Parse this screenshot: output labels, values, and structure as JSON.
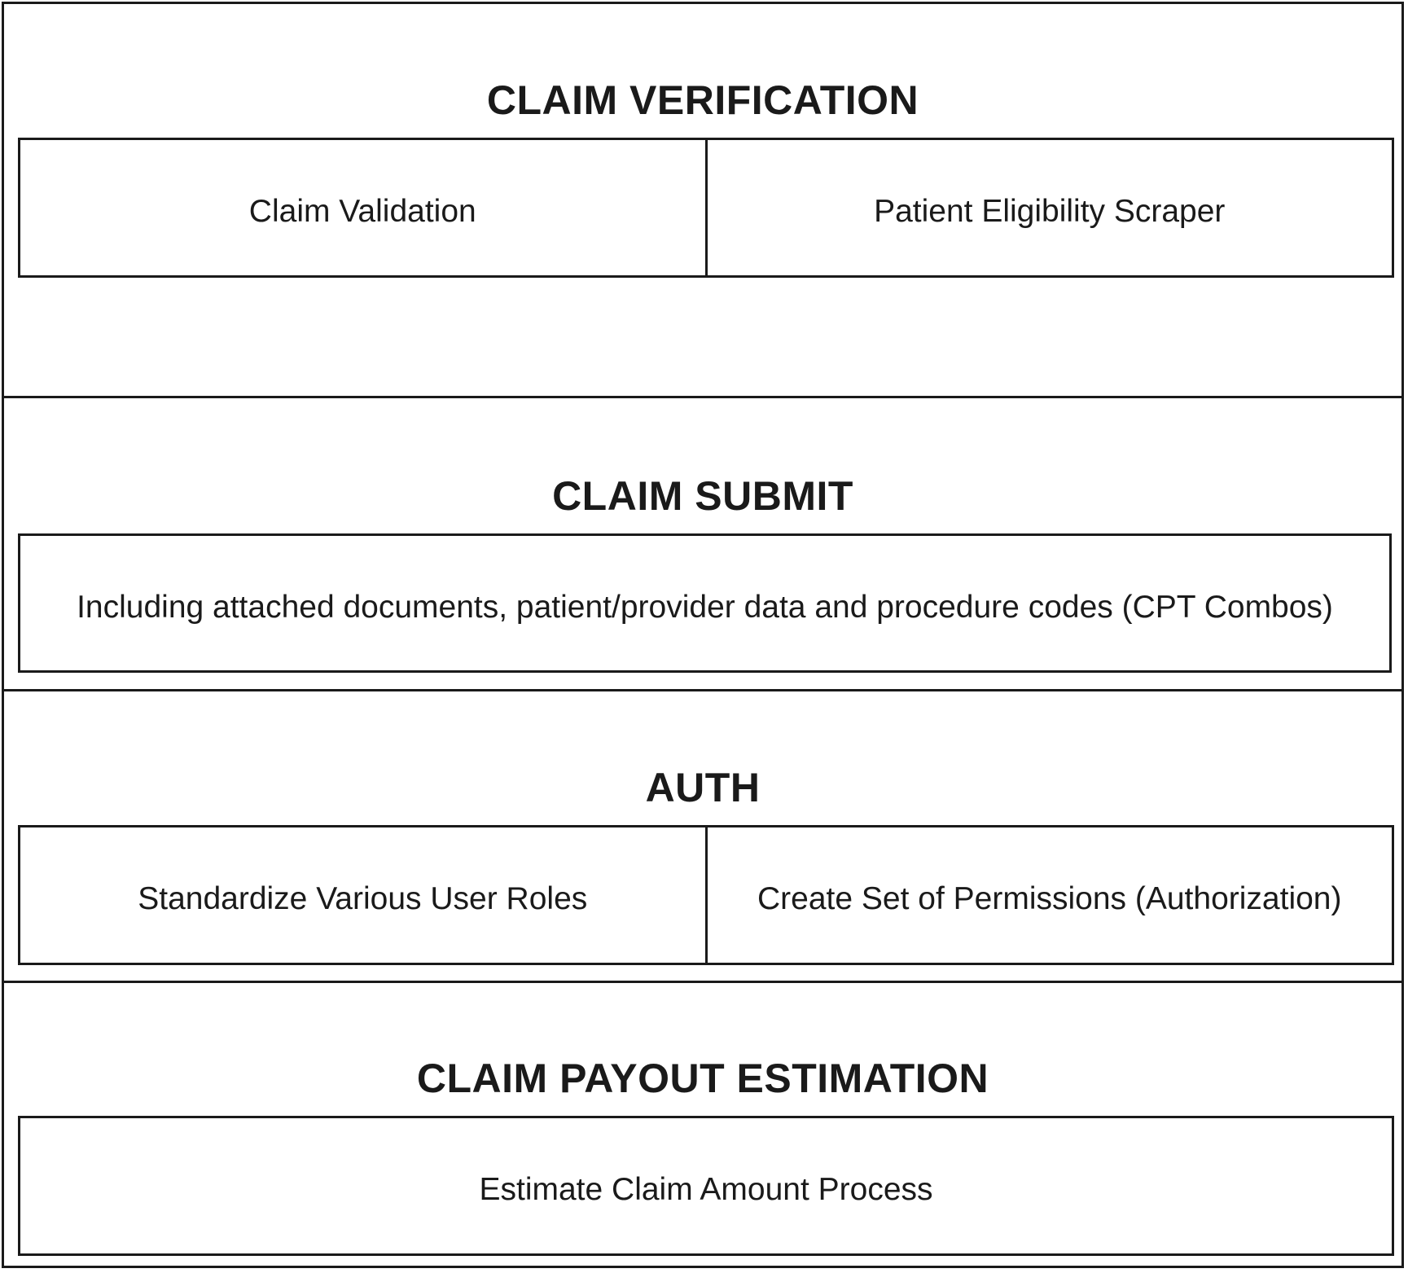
{
  "sections": [
    {
      "title": "CLAIM VERIFICATION",
      "items": [
        "Claim Validation",
        "Patient Eligibility Scraper"
      ]
    },
    {
      "title": "CLAIM SUBMIT",
      "items": [
        "Including attached documents, patient/provider data and procedure codes (CPT Combos)"
      ]
    },
    {
      "title": "AUTH",
      "items": [
        "Standardize Various User Roles",
        "Create Set of Permissions (Authorization)"
      ]
    },
    {
      "title": "CLAIM PAYOUT ESTIMATION",
      "items": [
        "Estimate Claim Amount Process"
      ]
    }
  ]
}
